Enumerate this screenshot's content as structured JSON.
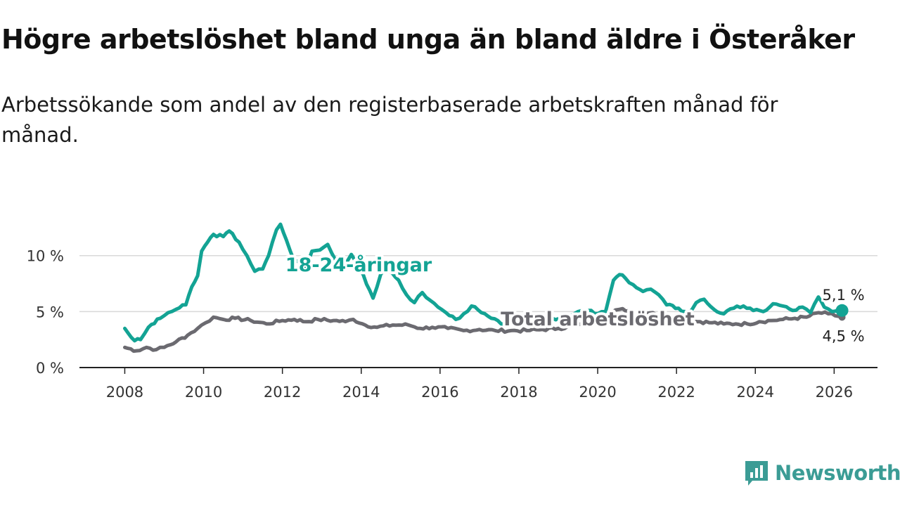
{
  "title": "Högre arbetslöshet bland unga än bland äldre i Österåker",
  "subtitle": "Arbetssökande som andel av den registerbaserade arbetskraften månad för månad.",
  "brand": {
    "name": "Newsworthy",
    "icon": "newsworthy-logo-icon",
    "color": "#3b9c95"
  },
  "chart_data": {
    "type": "line",
    "x_unit": "year (decimal, monthly)",
    "x_ticks": [
      2008,
      2010,
      2012,
      2014,
      2016,
      2018,
      2020,
      2022,
      2024,
      2026
    ],
    "x_tick_labels": [
      "2008",
      "2010",
      "2012",
      "2014",
      "2016",
      "2018",
      "2020",
      "2022",
      "2024",
      "2026"
    ],
    "xlim": [
      2006.85,
      2027.1
    ],
    "y_ticks": [
      0,
      5,
      10
    ],
    "y_tick_labels": [
      "0 %",
      "5 %",
      "10 %"
    ],
    "ylim": [
      0,
      14
    ],
    "grid": true,
    "series": [
      {
        "name": "18-24-åringar",
        "color": "#13a394",
        "end_label": "5,1 %",
        "anchors": [
          [
            2008.0,
            3.5
          ],
          [
            2008.25,
            2.4
          ],
          [
            2008.4,
            2.5
          ],
          [
            2008.6,
            3.6
          ],
          [
            2008.9,
            4.4
          ],
          [
            2009.1,
            4.9
          ],
          [
            2009.3,
            5.2
          ],
          [
            2009.55,
            5.6
          ],
          [
            2009.7,
            7.2
          ],
          [
            2009.85,
            8.2
          ],
          [
            2009.95,
            10.4
          ],
          [
            2010.1,
            11.2
          ],
          [
            2010.25,
            11.9
          ],
          [
            2010.5,
            11.7
          ],
          [
            2010.65,
            12.2
          ],
          [
            2010.9,
            11.2
          ],
          [
            2011.1,
            10.0
          ],
          [
            2011.3,
            8.6
          ],
          [
            2011.5,
            8.8
          ],
          [
            2011.65,
            10.0
          ],
          [
            2011.85,
            12.3
          ],
          [
            2011.95,
            12.8
          ],
          [
            2012.1,
            11.4
          ],
          [
            2012.3,
            9.5
          ],
          [
            2012.45,
            9.4
          ],
          [
            2012.6,
            8.8
          ],
          [
            2012.75,
            10.4
          ],
          [
            2012.95,
            10.5
          ],
          [
            2013.15,
            11.0
          ],
          [
            2013.35,
            9.6
          ],
          [
            2013.55,
            9.2
          ],
          [
            2013.75,
            10.1
          ],
          [
            2013.9,
            9.3
          ],
          [
            2014.05,
            8.3
          ],
          [
            2014.3,
            6.2
          ],
          [
            2014.5,
            8.4
          ],
          [
            2014.7,
            8.6
          ],
          [
            2014.95,
            7.8
          ],
          [
            2015.15,
            6.5
          ],
          [
            2015.35,
            5.8
          ],
          [
            2015.55,
            6.7
          ],
          [
            2015.75,
            6.0
          ],
          [
            2015.95,
            5.4
          ],
          [
            2016.15,
            4.9
          ],
          [
            2016.4,
            4.3
          ],
          [
            2016.6,
            4.8
          ],
          [
            2016.8,
            5.5
          ],
          [
            2017.05,
            4.9
          ],
          [
            2017.3,
            4.4
          ],
          [
            2017.55,
            3.9
          ],
          [
            2017.8,
            4.2
          ],
          [
            2018.1,
            4.4
          ],
          [
            2018.4,
            4.3
          ],
          [
            2018.6,
            4.5
          ],
          [
            2018.85,
            4.4
          ],
          [
            2019.1,
            4.4
          ],
          [
            2019.3,
            4.6
          ],
          [
            2019.5,
            5.0
          ],
          [
            2019.75,
            5.1
          ],
          [
            2020.0,
            4.8
          ],
          [
            2020.2,
            5.0
          ],
          [
            2020.4,
            7.8
          ],
          [
            2020.55,
            8.3
          ],
          [
            2020.7,
            8.0
          ],
          [
            2020.9,
            7.4
          ],
          [
            2021.15,
            6.8
          ],
          [
            2021.35,
            7.0
          ],
          [
            2021.55,
            6.5
          ],
          [
            2021.75,
            5.6
          ],
          [
            2022.05,
            5.3
          ],
          [
            2022.3,
            4.8
          ],
          [
            2022.5,
            5.8
          ],
          [
            2022.7,
            6.1
          ],
          [
            2022.95,
            5.2
          ],
          [
            2023.2,
            4.8
          ],
          [
            2023.45,
            5.3
          ],
          [
            2023.7,
            5.5
          ],
          [
            2023.95,
            5.1
          ],
          [
            2024.2,
            5.0
          ],
          [
            2024.45,
            5.7
          ],
          [
            2024.7,
            5.5
          ],
          [
            2024.95,
            5.1
          ],
          [
            2025.2,
            5.4
          ],
          [
            2025.4,
            4.9
          ],
          [
            2025.6,
            6.3
          ],
          [
            2025.75,
            5.4
          ],
          [
            2025.95,
            5.0
          ],
          [
            2026.2,
            5.1
          ]
        ]
      },
      {
        "name": "Total arbetslöshet",
        "color": "#6b6a70",
        "end_label": "4,5 %",
        "anchors": [
          [
            2008.0,
            1.8
          ],
          [
            2008.3,
            1.5
          ],
          [
            2008.55,
            1.8
          ],
          [
            2008.8,
            1.6
          ],
          [
            2009.0,
            1.8
          ],
          [
            2009.3,
            2.3
          ],
          [
            2009.6,
            2.9
          ],
          [
            2009.85,
            3.5
          ],
          [
            2010.05,
            4.0
          ],
          [
            2010.25,
            4.5
          ],
          [
            2010.5,
            4.3
          ],
          [
            2010.8,
            4.4
          ],
          [
            2011.2,
            4.2
          ],
          [
            2011.6,
            3.9
          ],
          [
            2012.0,
            4.2
          ],
          [
            2012.3,
            4.3
          ],
          [
            2012.6,
            4.1
          ],
          [
            2012.9,
            4.3
          ],
          [
            2013.3,
            4.2
          ],
          [
            2013.6,
            4.1
          ],
          [
            2013.8,
            4.3
          ],
          [
            2014.1,
            3.8
          ],
          [
            2014.4,
            3.6
          ],
          [
            2014.8,
            3.8
          ],
          [
            2015.2,
            3.8
          ],
          [
            2015.5,
            3.5
          ],
          [
            2015.8,
            3.6
          ],
          [
            2016.2,
            3.5
          ],
          [
            2016.6,
            3.3
          ],
          [
            2017.0,
            3.4
          ],
          [
            2017.4,
            3.3
          ],
          [
            2017.8,
            3.3
          ],
          [
            2018.2,
            3.3
          ],
          [
            2018.6,
            3.4
          ],
          [
            2019.0,
            3.5
          ],
          [
            2019.4,
            3.7
          ],
          [
            2019.8,
            3.9
          ],
          [
            2020.1,
            4.2
          ],
          [
            2020.35,
            4.9
          ],
          [
            2020.55,
            5.2
          ],
          [
            2020.8,
            5.1
          ],
          [
            2021.1,
            5.0
          ],
          [
            2021.4,
            4.9
          ],
          [
            2021.7,
            4.6
          ],
          [
            2022.0,
            4.4
          ],
          [
            2022.3,
            4.2
          ],
          [
            2022.6,
            4.1
          ],
          [
            2022.9,
            4.0
          ],
          [
            2023.2,
            3.9
          ],
          [
            2023.5,
            3.9
          ],
          [
            2023.8,
            3.9
          ],
          [
            2024.1,
            4.1
          ],
          [
            2024.4,
            4.2
          ],
          [
            2024.7,
            4.3
          ],
          [
            2025.0,
            4.4
          ],
          [
            2025.3,
            4.5
          ],
          [
            2025.6,
            4.9
          ],
          [
            2025.85,
            4.8
          ],
          [
            2026.2,
            4.5
          ]
        ]
      }
    ]
  }
}
